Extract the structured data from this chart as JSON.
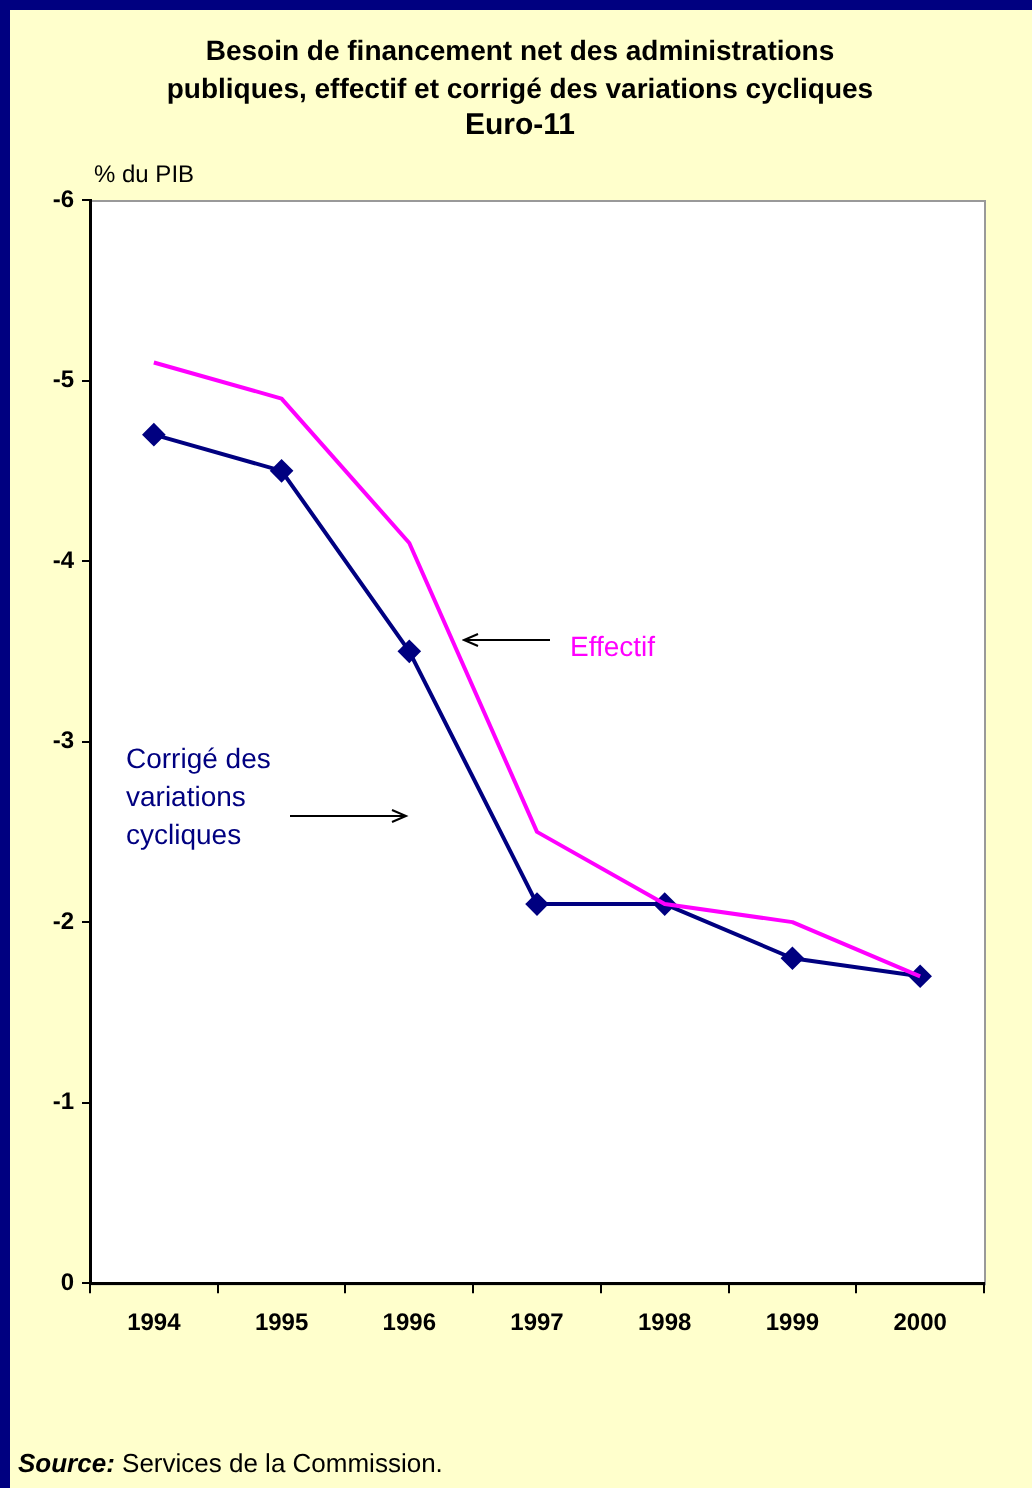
{
  "chart_data": {
    "type": "line",
    "title": "Besoin de financement net des administrations publiques, effectif et corrigé des variations cycliques",
    "subtitle": "Euro-11",
    "ylabel": "% du PIB",
    "categories": [
      "1994",
      "1995",
      "1996",
      "1997",
      "1998",
      "1999",
      "2000"
    ],
    "series": [
      {
        "name": "Effectif",
        "color": "#ff00ff",
        "marker": "none",
        "values": [
          -5.1,
          -4.9,
          -4.1,
          -2.5,
          -2.1,
          -2.0,
          -1.7
        ]
      },
      {
        "name": "Corrigé des variations cycliques",
        "color": "#000080",
        "marker": "diamond",
        "values": [
          -4.7,
          -4.5,
          -3.5,
          -2.1,
          -2.1,
          -1.8,
          -1.7
        ]
      }
    ],
    "ylim": [
      0,
      -6
    ],
    "yticks": [
      0,
      -1,
      -2,
      -3,
      -4,
      -5,
      -6
    ],
    "grid": false,
    "legend": false,
    "line_style": "solid",
    "annotations": [
      "Source: Services de la Commission."
    ]
  }
}
